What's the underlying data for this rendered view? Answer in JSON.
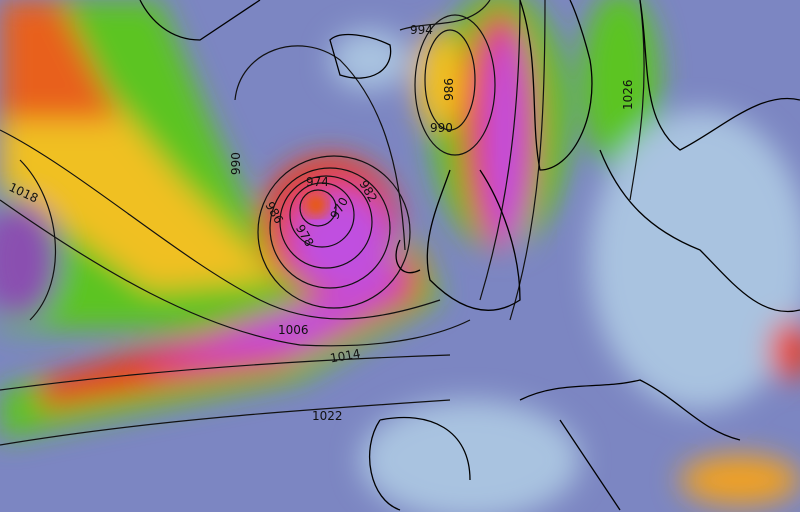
{
  "map": {
    "type": "weather wind-speed map with isobars",
    "colors": {
      "calm": "#a9c3e0",
      "low": "#8a4fb0",
      "mid": "#55c21f",
      "high": "#f0c020",
      "strong": "#e8401a",
      "extreme": "#c050e0",
      "isobar": "#111111",
      "coast": "#000000"
    },
    "isobar_labels": [
      "994",
      "986",
      "990",
      "1026",
      "1018",
      "990",
      "974",
      "982",
      "986",
      "978",
      "970",
      "1006",
      "1014",
      "1022"
    ]
  }
}
